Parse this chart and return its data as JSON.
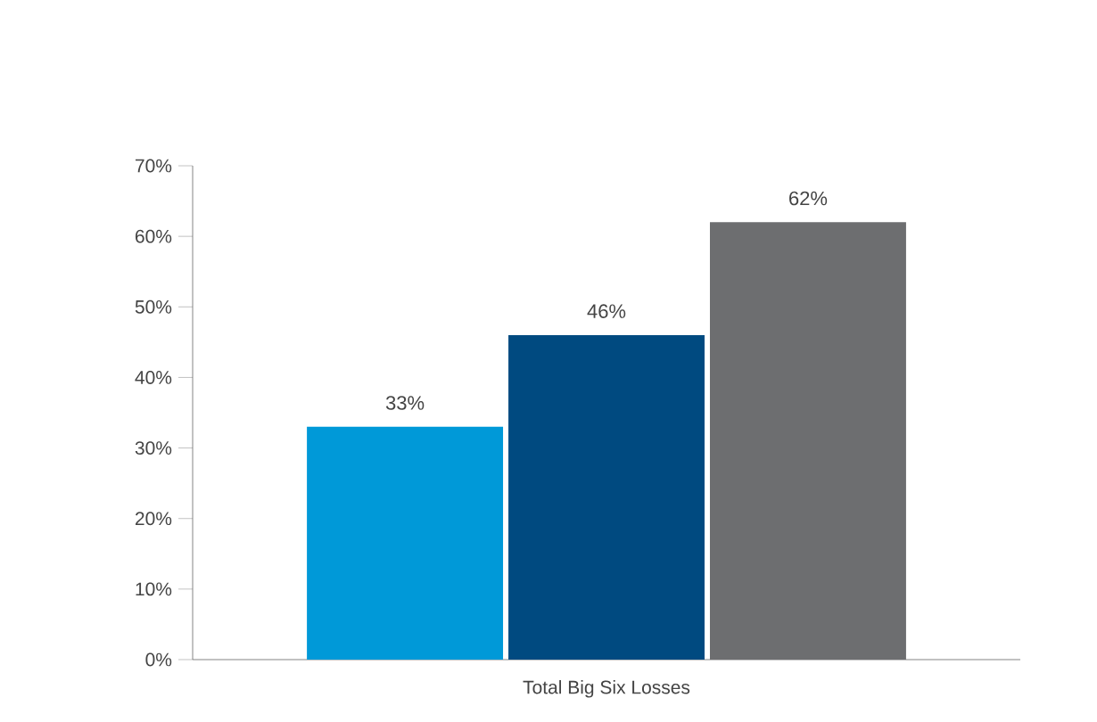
{
  "chart_data": {
    "type": "bar",
    "categories": [
      "Total Big Six Losses"
    ],
    "series": [
      {
        "color": "#0099d8",
        "values": [
          33
        ],
        "value_labels": [
          "33%"
        ]
      },
      {
        "color": "#004a80",
        "values": [
          46
        ],
        "value_labels": [
          "46%"
        ]
      },
      {
        "color": "#6d6e70",
        "values": [
          62
        ],
        "value_labels": [
          "62%"
        ]
      }
    ],
    "ylim": [
      0,
      70
    ],
    "yticks": [
      {
        "value": 0,
        "label": "0%"
      },
      {
        "value": 10,
        "label": "10%"
      },
      {
        "value": 20,
        "label": "20%"
      },
      {
        "value": 30,
        "label": "30%"
      },
      {
        "value": 40,
        "label": "40%"
      },
      {
        "value": 50,
        "label": "50%"
      },
      {
        "value": 60,
        "label": "60%"
      },
      {
        "value": 70,
        "label": "70%"
      }
    ],
    "grid": false
  }
}
